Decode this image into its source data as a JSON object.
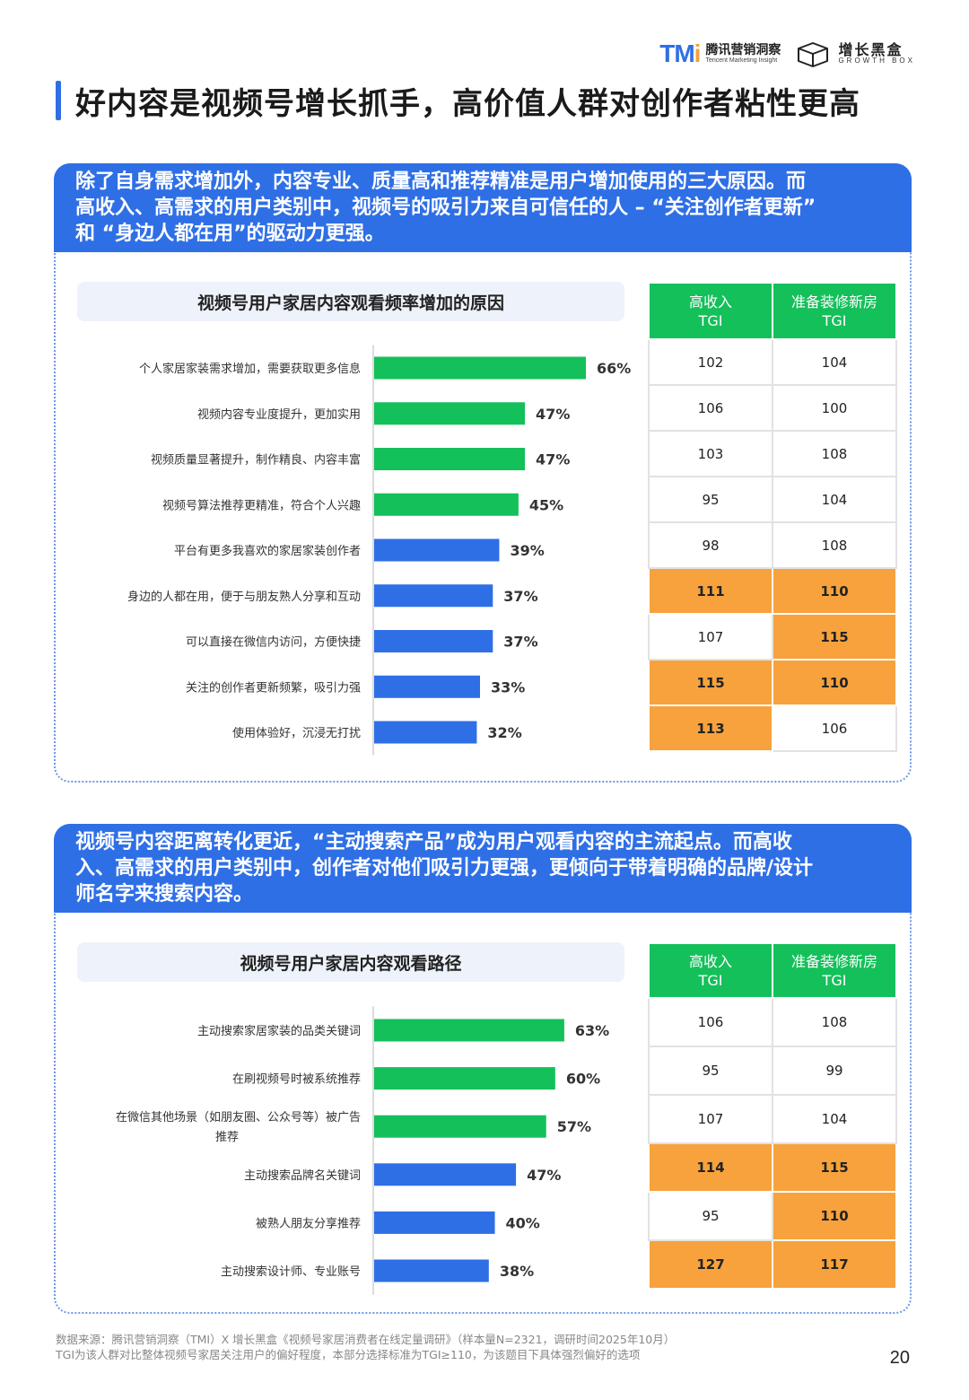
{
  "logos": {
    "tmi_mark": "TM",
    "tmi_mark_i": "i",
    "tmi_cn": "腾讯营销洞察",
    "tmi_en": "Tencent Marketing Insight",
    "gb_cn": "增长黑盒",
    "gb_en": "GROWTH BOX"
  },
  "page_title": "好内容是视频号增长抓手，高价值人群对创作者粘性更高",
  "colors": {
    "accent_blue": "#2f6fe6",
    "bar_green": "#14c05a",
    "bar_blue": "#2f6fe6",
    "highlight_orange": "#f7a23c"
  },
  "section1": {
    "header_lines": [
      "除了自身需求增加外，内容专业、质量高和推荐精准是用户增加使用的三大原因。而",
      "高收入、高需求的用户类别中，视频号的吸引力来自可信任的人 – “关注创作者更新”",
      "和 “身边人都在用”的驱动力更强。"
    ],
    "table_headers": [
      [
        "高收入",
        "TGI"
      ],
      [
        "准备装修新房",
        "TGI"
      ]
    ],
    "tgi_rows": [
      [
        {
          "v": "102",
          "hl": false
        },
        {
          "v": "104",
          "hl": false
        }
      ],
      [
        {
          "v": "106",
          "hl": false
        },
        {
          "v": "100",
          "hl": false
        }
      ],
      [
        {
          "v": "103",
          "hl": false
        },
        {
          "v": "108",
          "hl": false
        }
      ],
      [
        {
          "v": "95",
          "hl": false
        },
        {
          "v": "104",
          "hl": false
        }
      ],
      [
        {
          "v": "98",
          "hl": false
        },
        {
          "v": "108",
          "hl": false
        }
      ],
      [
        {
          "v": "111",
          "hl": true
        },
        {
          "v": "110",
          "hl": true
        }
      ],
      [
        {
          "v": "107",
          "hl": false
        },
        {
          "v": "115",
          "hl": true
        }
      ],
      [
        {
          "v": "115",
          "hl": true
        },
        {
          "v": "110",
          "hl": true
        }
      ],
      [
        {
          "v": "113",
          "hl": true
        },
        {
          "v": "106",
          "hl": false
        }
      ]
    ]
  },
  "section2": {
    "header_lines": [
      "视频号内容距离转化更近，“主动搜索产品”成为用户观看内容的主流起点。而高收",
      "入、高需求的用户类别中，创作者对他们吸引力更强，更倾向于带着明确的品牌/设计",
      "师名字来搜索内容。"
    ],
    "table_headers": [
      [
        "高收入",
        "TGI"
      ],
      [
        "准备装修新房",
        "TGI"
      ]
    ],
    "tgi_rows": [
      [
        {
          "v": "106",
          "hl": false
        },
        {
          "v": "108",
          "hl": false
        }
      ],
      [
        {
          "v": "95",
          "hl": false
        },
        {
          "v": "99",
          "hl": false
        }
      ],
      [
        {
          "v": "107",
          "hl": false
        },
        {
          "v": "104",
          "hl": false
        }
      ],
      [
        {
          "v": "114",
          "hl": true
        },
        {
          "v": "115",
          "hl": true
        }
      ],
      [
        {
          "v": "95",
          "hl": false
        },
        {
          "v": "110",
          "hl": true
        }
      ],
      [
        {
          "v": "127",
          "hl": true
        },
        {
          "v": "117",
          "hl": true
        }
      ]
    ]
  },
  "chart_data": [
    {
      "type": "bar",
      "orientation": "horizontal",
      "title": "视频号用户家居内容观看频率增加的原因",
      "categories": [
        "个人家居家装需求增加，需要获取更多信息",
        "视频内容专业度提升，更加实用",
        "视频质量显著提升，制作精良、内容丰富",
        "视频号算法推荐更精准，符合个人兴趣",
        "平台有更多我喜欢的家居家装创作者",
        "身边的人都在用，便于与朋友熟人分享和互动",
        "可以直接在微信内访问，方便快捷",
        "关注的创作者更新频繁，吸引力强",
        "使用体验好，沉浸无打扰"
      ],
      "values": [
        66,
        47,
        47,
        45,
        39,
        37,
        37,
        33,
        32
      ],
      "value_labels": [
        "66%",
        "47%",
        "47%",
        "45%",
        "39%",
        "37%",
        "37%",
        "33%",
        "32%"
      ],
      "bar_colors": [
        "green",
        "green",
        "green",
        "green",
        "blue",
        "blue",
        "blue",
        "blue",
        "blue"
      ],
      "xlim": [
        0,
        100
      ]
    },
    {
      "type": "bar",
      "orientation": "horizontal",
      "title": "视频号用户家居内容观看路径",
      "categories": [
        "主动搜索家居家装的品类关键词",
        "在刷视频号时被系统推荐",
        "在微信其他场景（如朋友圈、公众号等）被广告推荐",
        "主动搜索品牌名关键词",
        "被熟人朋友分享推荐",
        "主动搜索设计师、专业账号"
      ],
      "category_lines": [
        [
          "主动搜索家居家装的品类关键词"
        ],
        [
          "在刷视频号时被系统推荐"
        ],
        [
          "在微信其他场景（如朋友圈、公众号等）被广告",
          "推荐"
        ],
        [
          "主动搜索品牌名关键词"
        ],
        [
          "被熟人朋友分享推荐"
        ],
        [
          "主动搜索设计师、专业账号"
        ]
      ],
      "values": [
        63,
        60,
        57,
        47,
        40,
        38
      ],
      "value_labels": [
        "63%",
        "60%",
        "57%",
        "47%",
        "40%",
        "38%"
      ],
      "bar_colors": [
        "green",
        "green",
        "green",
        "blue",
        "blue",
        "blue"
      ],
      "xlim": [
        0,
        100
      ]
    }
  ],
  "footer": {
    "line1": "数据来源：腾讯营销洞察（TMI）X 增长黑盒《视频号家居消费者在线定量调研》（样本量N=2321，调研时间2025年10月）",
    "line2": "TGI为该人群对比整体视频号家居关注用户的偏好程度，本部分选择标准为TGI≥110，为该题目下具体强烈偏好的选项"
  },
  "page_number": "20"
}
